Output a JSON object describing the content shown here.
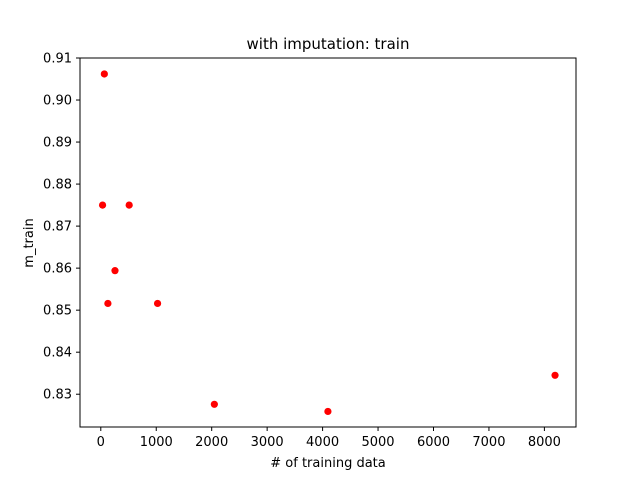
{
  "chart_data": {
    "type": "scatter",
    "title": "with imputation: train",
    "xlabel": "# of training data",
    "ylabel": "m_train",
    "xlim": [
      -375,
      8570
    ],
    "ylim": [
      0.8222,
      0.91
    ],
    "xticks": [
      0,
      1000,
      2000,
      3000,
      4000,
      5000,
      6000,
      7000,
      8000
    ],
    "xtick_labels": [
      "0",
      "1000",
      "2000",
      "3000",
      "4000",
      "5000",
      "6000",
      "7000",
      "8000"
    ],
    "yticks": [
      0.83,
      0.84,
      0.85,
      0.86,
      0.87,
      0.88,
      0.89,
      0.9,
      0.91
    ],
    "ytick_labels": [
      "0.83",
      "0.84",
      "0.85",
      "0.86",
      "0.87",
      "0.88",
      "0.89",
      "0.90",
      "0.91"
    ],
    "grid": false,
    "legend": "none",
    "series": [
      {
        "color": "#ff0000",
        "points": [
          {
            "x": 32,
            "y": 0.875
          },
          {
            "x": 64,
            "y": 0.9062
          },
          {
            "x": 128,
            "y": 0.8516
          },
          {
            "x": 256,
            "y": 0.8594
          },
          {
            "x": 512,
            "y": 0.875
          },
          {
            "x": 1024,
            "y": 0.8516
          },
          {
            "x": 2048,
            "y": 0.8276
          },
          {
            "x": 4096,
            "y": 0.8259
          },
          {
            "x": 8192,
            "y": 0.8345
          }
        ]
      }
    ]
  }
}
